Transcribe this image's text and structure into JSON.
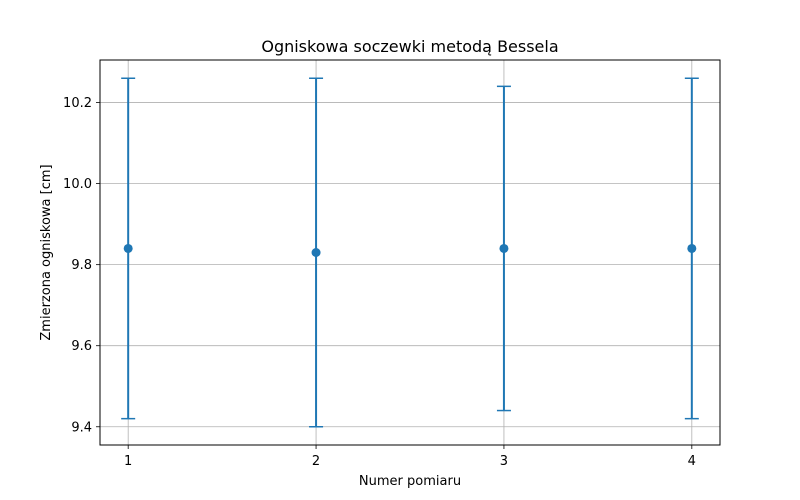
{
  "chart_data": {
    "type": "scatter",
    "title": "Ogniskowa soczewki metodą Bessela",
    "xlabel": "Numer pomiaru",
    "ylabel": "Zmierzona ogniskowa [cm]",
    "x_ticks": [
      "1",
      "2",
      "3",
      "4"
    ],
    "y_ticks": [
      "9.4",
      "9.6",
      "9.8",
      "10.0",
      "10.2"
    ],
    "xlim": [
      0.85,
      4.15
    ],
    "ylim": [
      9.355,
      10.305
    ],
    "grid": true,
    "series": [
      {
        "x": [
          1,
          2,
          3,
          4
        ],
        "values": [
          9.84,
          9.83,
          9.84,
          9.84
        ],
        "error_low": [
          9.42,
          9.4,
          9.44,
          9.42
        ],
        "error_high": [
          10.26,
          10.26,
          10.24,
          10.26
        ],
        "color": "#1f77b4"
      }
    ],
    "grid_color": "#b0b0b0"
  }
}
